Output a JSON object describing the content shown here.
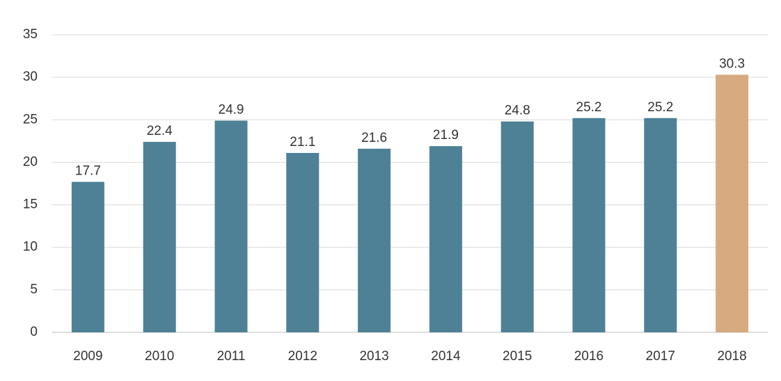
{
  "chart_data": {
    "type": "bar",
    "title": "",
    "xlabel": "",
    "ylabel": "",
    "categories": [
      "2009",
      "2010",
      "2011",
      "2012",
      "2013",
      "2014",
      "2015",
      "2016",
      "2017",
      "2018"
    ],
    "values": [
      17.7,
      22.4,
      24.9,
      21.1,
      21.6,
      21.9,
      24.8,
      25.2,
      25.2,
      30.3
    ],
    "value_labels": [
      "17.7",
      "22.4",
      "24.9",
      "21.1",
      "21.6",
      "21.9",
      "24.8",
      "25.2",
      "25.2",
      "30.3"
    ],
    "ylim": [
      0,
      35
    ],
    "yticks": [
      0,
      5,
      10,
      15,
      20,
      25,
      30,
      35
    ],
    "ytick_labels": [
      "0",
      "5",
      "10",
      "15",
      "20",
      "25",
      "30",
      "35"
    ],
    "grid": true,
    "legend": "none",
    "colors": {
      "default_bar": "#4e8196",
      "highlight_bar": "#d8aa80"
    },
    "highlight_categories": [
      "2018"
    ]
  }
}
